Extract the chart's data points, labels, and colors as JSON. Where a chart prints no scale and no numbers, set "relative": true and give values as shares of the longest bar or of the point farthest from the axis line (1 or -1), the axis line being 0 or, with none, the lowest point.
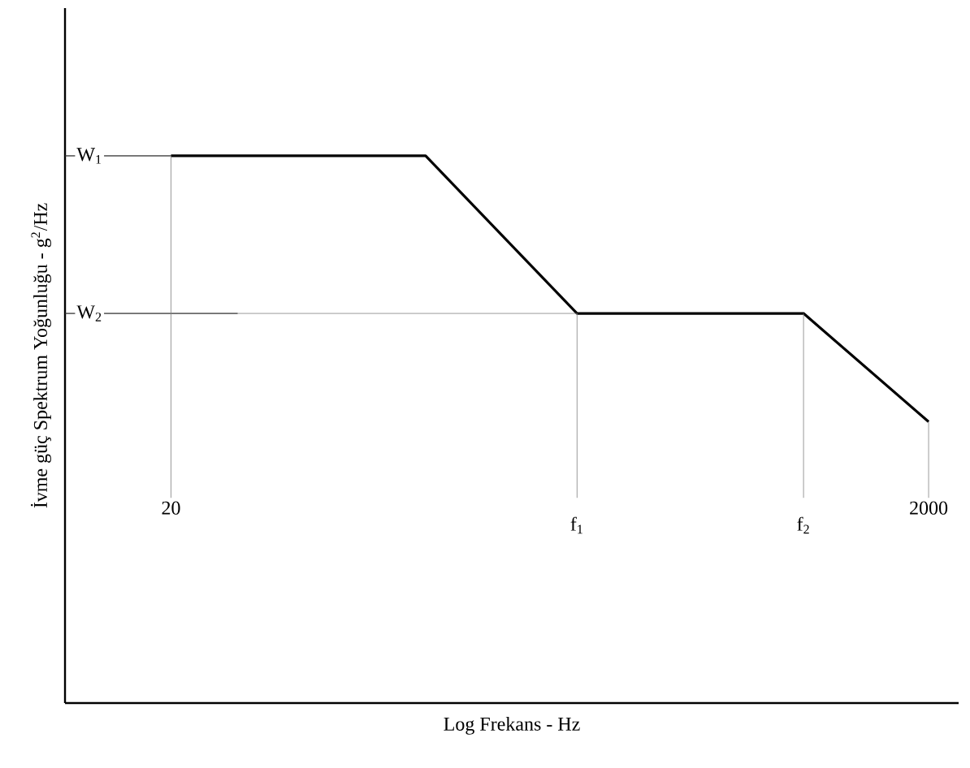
{
  "chart_data": {
    "type": "line",
    "relative": true,
    "log": "x",
    "xlabel": "Log Frekans - Hz",
    "ylabel": "İvme güç Spektrum Yoğunluğu - g$^{2}$/Hz",
    "x": [
      20,
      94,
      236,
      935,
      2000
    ],
    "series": [
      {
        "color": "#000000",
        "values": [
          1,
          1,
          0.712,
          0.712,
          0.514
        ]
      }
    ],
    "xlim": [
      10.5,
      2400
    ],
    "xticks": [
      20,
      2000
    ],
    "ref_lines": [
      {
        "axis": "y",
        "value": 1,
        "label": "W$_{1}$",
        "color": "#808080"
      },
      {
        "axis": "y",
        "value": 0.712,
        "label": "W$_{2}$",
        "color": "#808080"
      },
      {
        "axis": "x",
        "value": 20,
        "color": "#808080"
      },
      {
        "axis": "x",
        "value": 236,
        "label": "f$_{1}$",
        "color": "#808080"
      },
      {
        "axis": "x",
        "value": 935,
        "label": "f$_{2}$",
        "color": "#808080"
      },
      {
        "axis": "x",
        "value": 2000,
        "color": "#808080"
      }
    ],
    "marker": "none",
    "line_style": "solid"
  }
}
